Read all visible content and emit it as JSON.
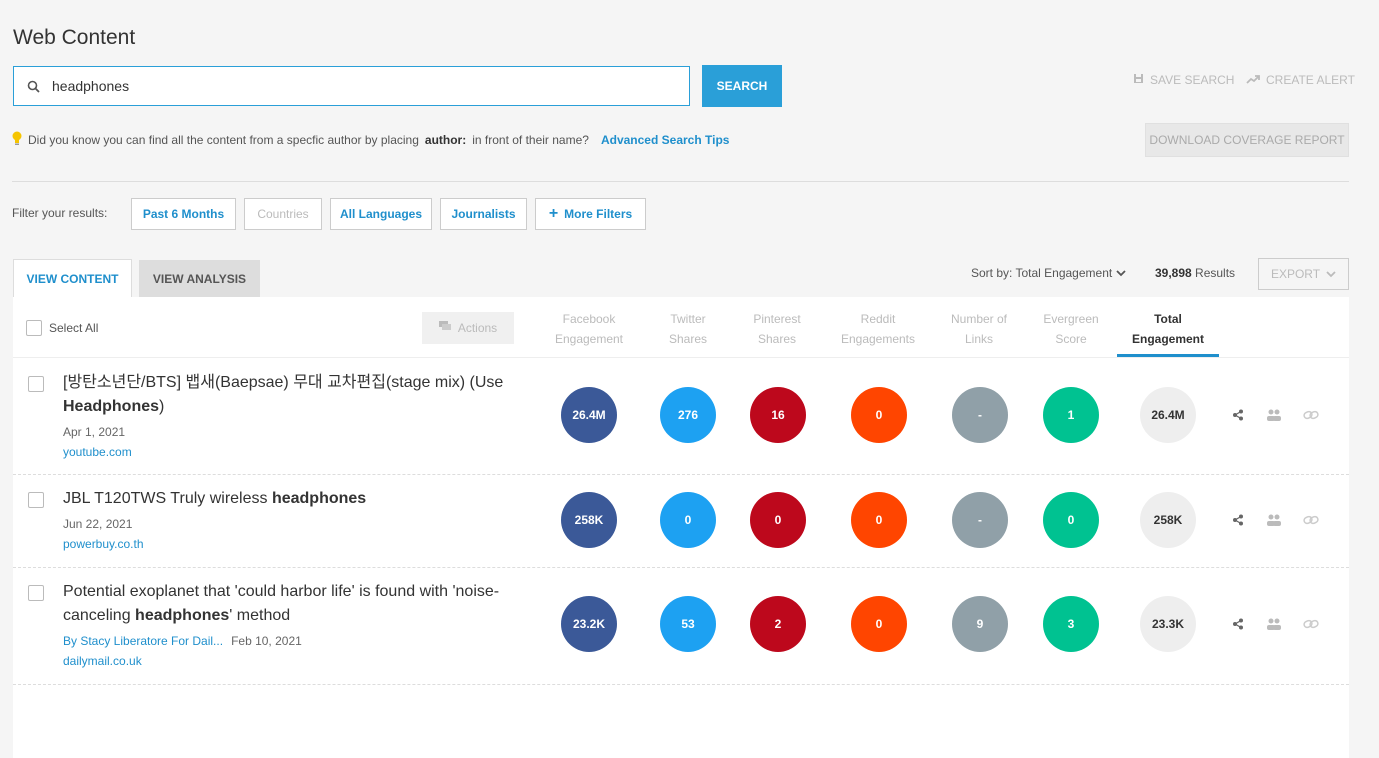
{
  "page_title": "Web Content",
  "search": {
    "value": "headphones",
    "button": "SEARCH"
  },
  "top_links": {
    "save_search": "SAVE SEARCH",
    "create_alert": "CREATE ALERT"
  },
  "tip": {
    "prefix": "Did you know you can find all the content from a specfic author by placing",
    "keyword": "author:",
    "suffix": "in front of their name?",
    "link": "Advanced Search Tips"
  },
  "download_button": "DOWNLOAD COVERAGE REPORT",
  "filters": {
    "label": "Filter your results:",
    "items": [
      "Past 6 Months",
      "Countries",
      "All Languages",
      "Journalists",
      "More Filters"
    ]
  },
  "tabs": [
    "VIEW CONTENT",
    "VIEW ANALYSIS"
  ],
  "sort": {
    "label": "Sort by: Total Engagement",
    "count": "39,898",
    "results_word": "Results"
  },
  "export": "EXPORT",
  "table": {
    "select_all": "Select All",
    "actions": "Actions",
    "columns": [
      [
        "Facebook",
        "Engagement"
      ],
      [
        "Twitter",
        "Shares"
      ],
      [
        "Pinterest",
        "Shares"
      ],
      [
        "Reddit",
        "Engagements"
      ],
      [
        "Number of",
        "Links"
      ],
      [
        "Evergreen",
        "Score"
      ],
      [
        "Total",
        "Engagement"
      ]
    ],
    "rows": [
      {
        "title_pre": "[방탄소년단/BTS] 뱁새(Baepsae) 무대 교차편집(stage mix) (Use ",
        "title_bold": "Headphones",
        "title_post": ")",
        "author": "",
        "date": "Apr 1, 2021",
        "domain": "youtube.com",
        "metrics": [
          "26.4M",
          "276",
          "16",
          "0",
          "-",
          "1",
          "26.4M"
        ]
      },
      {
        "title_pre": "JBL T120TWS Truly wireless ",
        "title_bold": "headphones",
        "title_post": "",
        "author": "",
        "date": "Jun 22, 2021",
        "domain": "powerbuy.co.th",
        "metrics": [
          "258K",
          "0",
          "0",
          "0",
          "-",
          "0",
          "258K"
        ]
      },
      {
        "title_pre": "Potential exoplanet that 'could harbor life' is found with 'noise-canceling ",
        "title_bold": "headphones",
        "title_post": "' method",
        "author": "By Stacy Liberatore For Dail...",
        "date": "Feb 10, 2021",
        "domain": "dailymail.co.uk",
        "metrics": [
          "23.2K",
          "53",
          "2",
          "0",
          "9",
          "3",
          "23.3K"
        ]
      }
    ]
  },
  "colors": {
    "accent": "#2a9fd8",
    "facebook": "#3b5998",
    "twitter": "#1da1f2",
    "pinterest": "#bd081c",
    "reddit": "#ff4500",
    "links": "#90a0a8",
    "evergreen": "#00c291",
    "total": "#eeeeee"
  }
}
